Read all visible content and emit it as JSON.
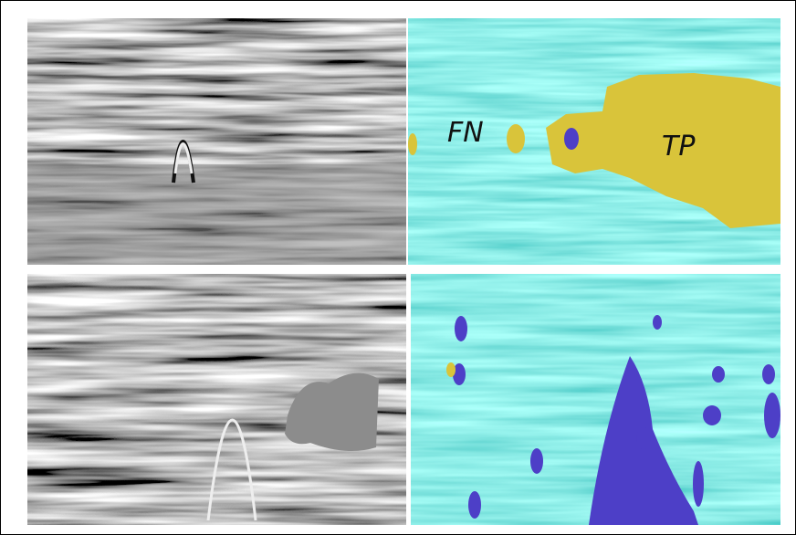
{
  "labels": {
    "fn": "FN",
    "tp": "TP"
  }
}
